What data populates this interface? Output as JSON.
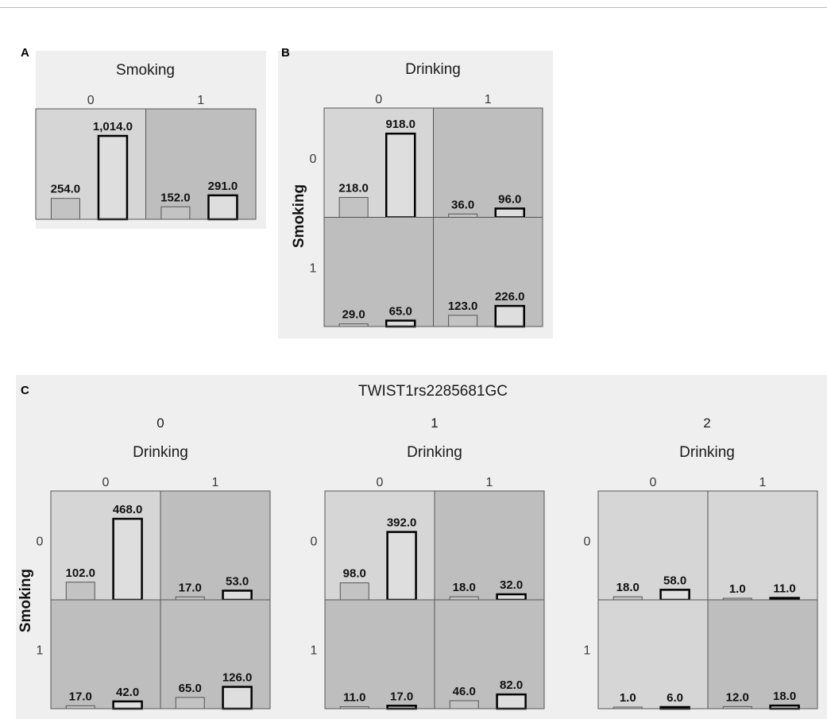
{
  "panels": {
    "a": {
      "label": "A"
    },
    "b": {
      "label": "B"
    },
    "c": {
      "label": "C"
    }
  },
  "chart_data": [
    {
      "type": "bar",
      "panel": "A",
      "title": "Smoking",
      "column_variable": "Smoking",
      "column_levels": [
        "0",
        "1"
      ],
      "cells": [
        {
          "col": "0",
          "values": [
            254.0,
            1014.0
          ],
          "value_labels": [
            "254.0",
            "1,014.0"
          ],
          "shade": "#d6d6d6"
        },
        {
          "col": "1",
          "values": [
            152.0,
            291.0
          ],
          "value_labels": [
            "152.0",
            "291.0"
          ],
          "shade": "#bebebe"
        }
      ]
    },
    {
      "type": "bar",
      "panel": "B",
      "title": "Drinking",
      "row_label": "Smoking",
      "column_levels": [
        "0",
        "1"
      ],
      "row_levels": [
        "0",
        "1"
      ],
      "cells": [
        {
          "row": "0",
          "col": "0",
          "values": [
            218.0,
            918.0
          ],
          "value_labels": [
            "218.0",
            "918.0"
          ],
          "shade": "#d6d6d6"
        },
        {
          "row": "0",
          "col": "1",
          "values": [
            36.0,
            96.0
          ],
          "value_labels": [
            "36.0",
            "96.0"
          ],
          "shade": "#bebebe"
        },
        {
          "row": "1",
          "col": "0",
          "values": [
            29.0,
            65.0
          ],
          "value_labels": [
            "29.0",
            "65.0"
          ],
          "shade": "#bebebe"
        },
        {
          "row": "1",
          "col": "1",
          "values": [
            123.0,
            226.0
          ],
          "value_labels": [
            "123.0",
            "226.0"
          ],
          "shade": "#bebebe"
        }
      ]
    },
    {
      "type": "bar",
      "panel": "C",
      "title": "TWIST1rs2285681GC",
      "row_label": "Smoking",
      "groups": [
        {
          "level": "0",
          "title": "Drinking",
          "column_levels": [
            "0",
            "1"
          ],
          "row_levels": [
            "0",
            "1"
          ],
          "cells": [
            {
              "row": "0",
              "col": "0",
              "values": [
                102.0,
                468.0
              ],
              "value_labels": [
                "102.0",
                "468.0"
              ],
              "shade": "#d6d6d6"
            },
            {
              "row": "0",
              "col": "1",
              "values": [
                17.0,
                53.0
              ],
              "value_labels": [
                "17.0",
                "53.0"
              ],
              "shade": "#bebebe"
            },
            {
              "row": "1",
              "col": "0",
              "values": [
                17.0,
                42.0
              ],
              "value_labels": [
                "17.0",
                "42.0"
              ],
              "shade": "#bebebe"
            },
            {
              "row": "1",
              "col": "1",
              "values": [
                65.0,
                126.0
              ],
              "value_labels": [
                "65.0",
                "126.0"
              ],
              "shade": "#bebebe"
            }
          ]
        },
        {
          "level": "1",
          "title": "Drinking",
          "column_levels": [
            "0",
            "1"
          ],
          "row_levels": [
            "0",
            "1"
          ],
          "cells": [
            {
              "row": "0",
              "col": "0",
              "values": [
                98.0,
                392.0
              ],
              "value_labels": [
                "98.0",
                "392.0"
              ],
              "shade": "#d6d6d6"
            },
            {
              "row": "0",
              "col": "1",
              "values": [
                18.0,
                32.0
              ],
              "value_labels": [
                "18.0",
                "32.0"
              ],
              "shade": "#bebebe"
            },
            {
              "row": "1",
              "col": "0",
              "values": [
                11.0,
                17.0
              ],
              "value_labels": [
                "11.0",
                "17.0"
              ],
              "shade": "#bebebe"
            },
            {
              "row": "1",
              "col": "1",
              "values": [
                46.0,
                82.0
              ],
              "value_labels": [
                "46.0",
                "82.0"
              ],
              "shade": "#bebebe"
            }
          ]
        },
        {
          "level": "2",
          "title": "Drinking",
          "column_levels": [
            "0",
            "1"
          ],
          "row_levels": [
            "0",
            "1"
          ],
          "cells": [
            {
              "row": "0",
              "col": "0",
              "values": [
                18.0,
                58.0
              ],
              "value_labels": [
                "18.0",
                "58.0"
              ],
              "shade": "#d6d6d6"
            },
            {
              "row": "0",
              "col": "1",
              "values": [
                1.0,
                11.0
              ],
              "value_labels": [
                "1.0",
                "11.0"
              ],
              "shade": "#d6d6d6"
            },
            {
              "row": "1",
              "col": "0",
              "values": [
                1.0,
                6.0
              ],
              "value_labels": [
                "1.0",
                "6.0"
              ],
              "shade": "#d6d6d6"
            },
            {
              "row": "1",
              "col": "1",
              "values": [
                12.0,
                18.0
              ],
              "value_labels": [
                "12.0",
                "18.0"
              ],
              "shade": "#bebebe"
            }
          ]
        }
      ]
    }
  ]
}
